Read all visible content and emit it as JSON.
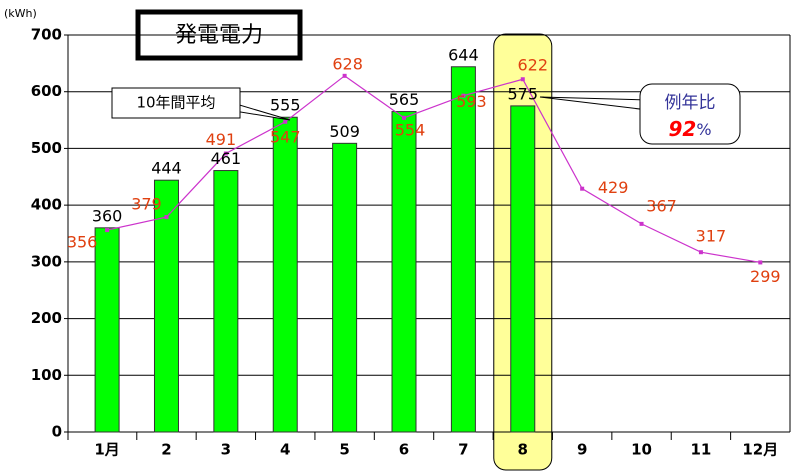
{
  "chart_data": {
    "type": "bar_line",
    "title": "発電電力",
    "y_unit": "(kWh)",
    "categories": [
      "1月",
      "2",
      "3",
      "4",
      "5",
      "6",
      "7",
      "8",
      "9",
      "10",
      "11",
      "12月"
    ],
    "series": [
      {
        "name": "発電電力",
        "type": "bar",
        "color": "#00ff00",
        "values": [
          360,
          444,
          461,
          555,
          509,
          565,
          644,
          575,
          null,
          null,
          null,
          null
        ]
      },
      {
        "name": "10年間平均",
        "type": "line",
        "color": "#cc33cc",
        "values": [
          356,
          379,
          491,
          547,
          628,
          554,
          593,
          622,
          429,
          367,
          317,
          299
        ]
      }
    ],
    "ylim": [
      0,
      700
    ],
    "yticks": [
      0,
      100,
      200,
      300,
      400,
      500,
      600,
      700
    ],
    "grid": true,
    "highlight_category": 7,
    "ratio_annotation": {
      "label": "例年比",
      "value": "92",
      "unit": "%"
    }
  }
}
